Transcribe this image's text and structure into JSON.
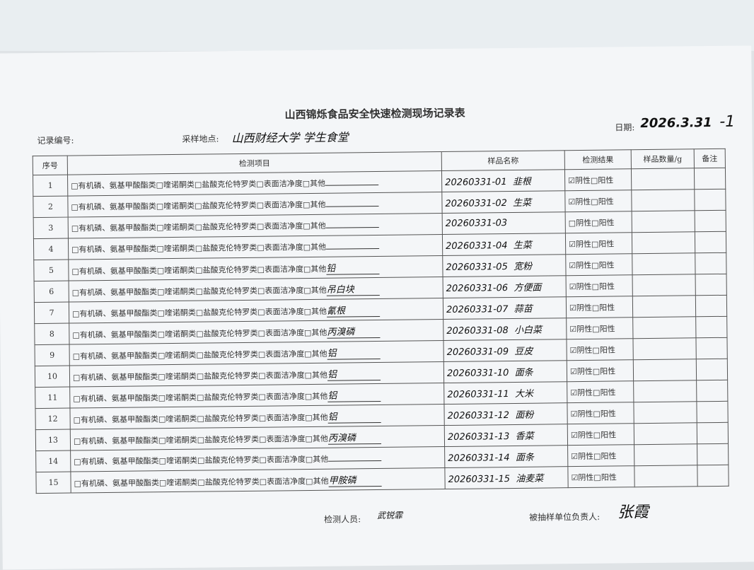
{
  "title": "山西锦烁食品安全快速检测现场记录表",
  "record_no_label": "记录编号:",
  "location_label": "采样地点:",
  "location": "山西财经大学 学生食堂",
  "date_label": "日期:",
  "date": "2026.3.31",
  "page_mark": "-1",
  "headers": [
    "序号",
    "检测项目",
    "样品名称",
    "检测结果",
    "样品数量/g",
    "备注"
  ],
  "item_text": "□有机磷、氨基甲酸酯类□喹诺酮类□盐酸克伦特罗类□表面洁净度□其他",
  "result_text": "☑阴性□阳性",
  "rows": [
    {
      "no": "1",
      "other": "",
      "sample_id": "20260331-01",
      "sample": "韭根",
      "result": "☑阴性□阳性"
    },
    {
      "no": "2",
      "other": "",
      "sample_id": "20260331-02",
      "sample": "生菜",
      "result": "☑阴性□阳性"
    },
    {
      "no": "3",
      "other": "",
      "sample_id": "20260331-03",
      "sample": "",
      "result": "□阴性□阳性"
    },
    {
      "no": "4",
      "other": "",
      "sample_id": "20260331-04",
      "sample": "生菜",
      "result": "☑阴性□阳性"
    },
    {
      "no": "5",
      "other": "铅",
      "sample_id": "20260331-05",
      "sample": "宽粉",
      "result": "☑阴性□阳性"
    },
    {
      "no": "6",
      "other": "吊白块",
      "sample_id": "20260331-06",
      "sample": "方便面",
      "result": "☑阴性□阳性"
    },
    {
      "no": "7",
      "other": "氰根",
      "sample_id": "20260331-07",
      "sample": "蒜苗",
      "result": "☑阴性□阳性"
    },
    {
      "no": "8",
      "other": "丙溴磷",
      "sample_id": "20260331-08",
      "sample": "小白菜",
      "result": "☑阴性□阳性"
    },
    {
      "no": "9",
      "other": "铝",
      "sample_id": "20260331-09",
      "sample": "豆皮",
      "result": "☑阴性□阳性"
    },
    {
      "no": "10",
      "other": "铝",
      "sample_id": "20260331-10",
      "sample": "面条",
      "result": "☑阴性□阳性"
    },
    {
      "no": "11",
      "other": "铝",
      "sample_id": "20260331-11",
      "sample": "大米",
      "result": "☑阴性□阳性"
    },
    {
      "no": "12",
      "other": "铝",
      "sample_id": "20260331-12",
      "sample": "面粉",
      "result": "☑阴性□阳性"
    },
    {
      "no": "13",
      "other": "丙溴磷",
      "sample_id": "20260331-13",
      "sample": "香菜",
      "result": "☑阴性□阳性"
    },
    {
      "no": "14",
      "other": "",
      "sample_id": "20260331-14",
      "sample": "面条",
      "result": "☑阴性□阳性"
    },
    {
      "no": "15",
      "other": "甲胺磷",
      "sample_id": "20260331-15",
      "sample": "油麦菜",
      "result": "☑阴性□阳性"
    }
  ],
  "inspector_label": "检测人员:",
  "inspector": "武锐霏",
  "responsible_label": "被抽样单位负责人:",
  "responsible": "张霞"
}
